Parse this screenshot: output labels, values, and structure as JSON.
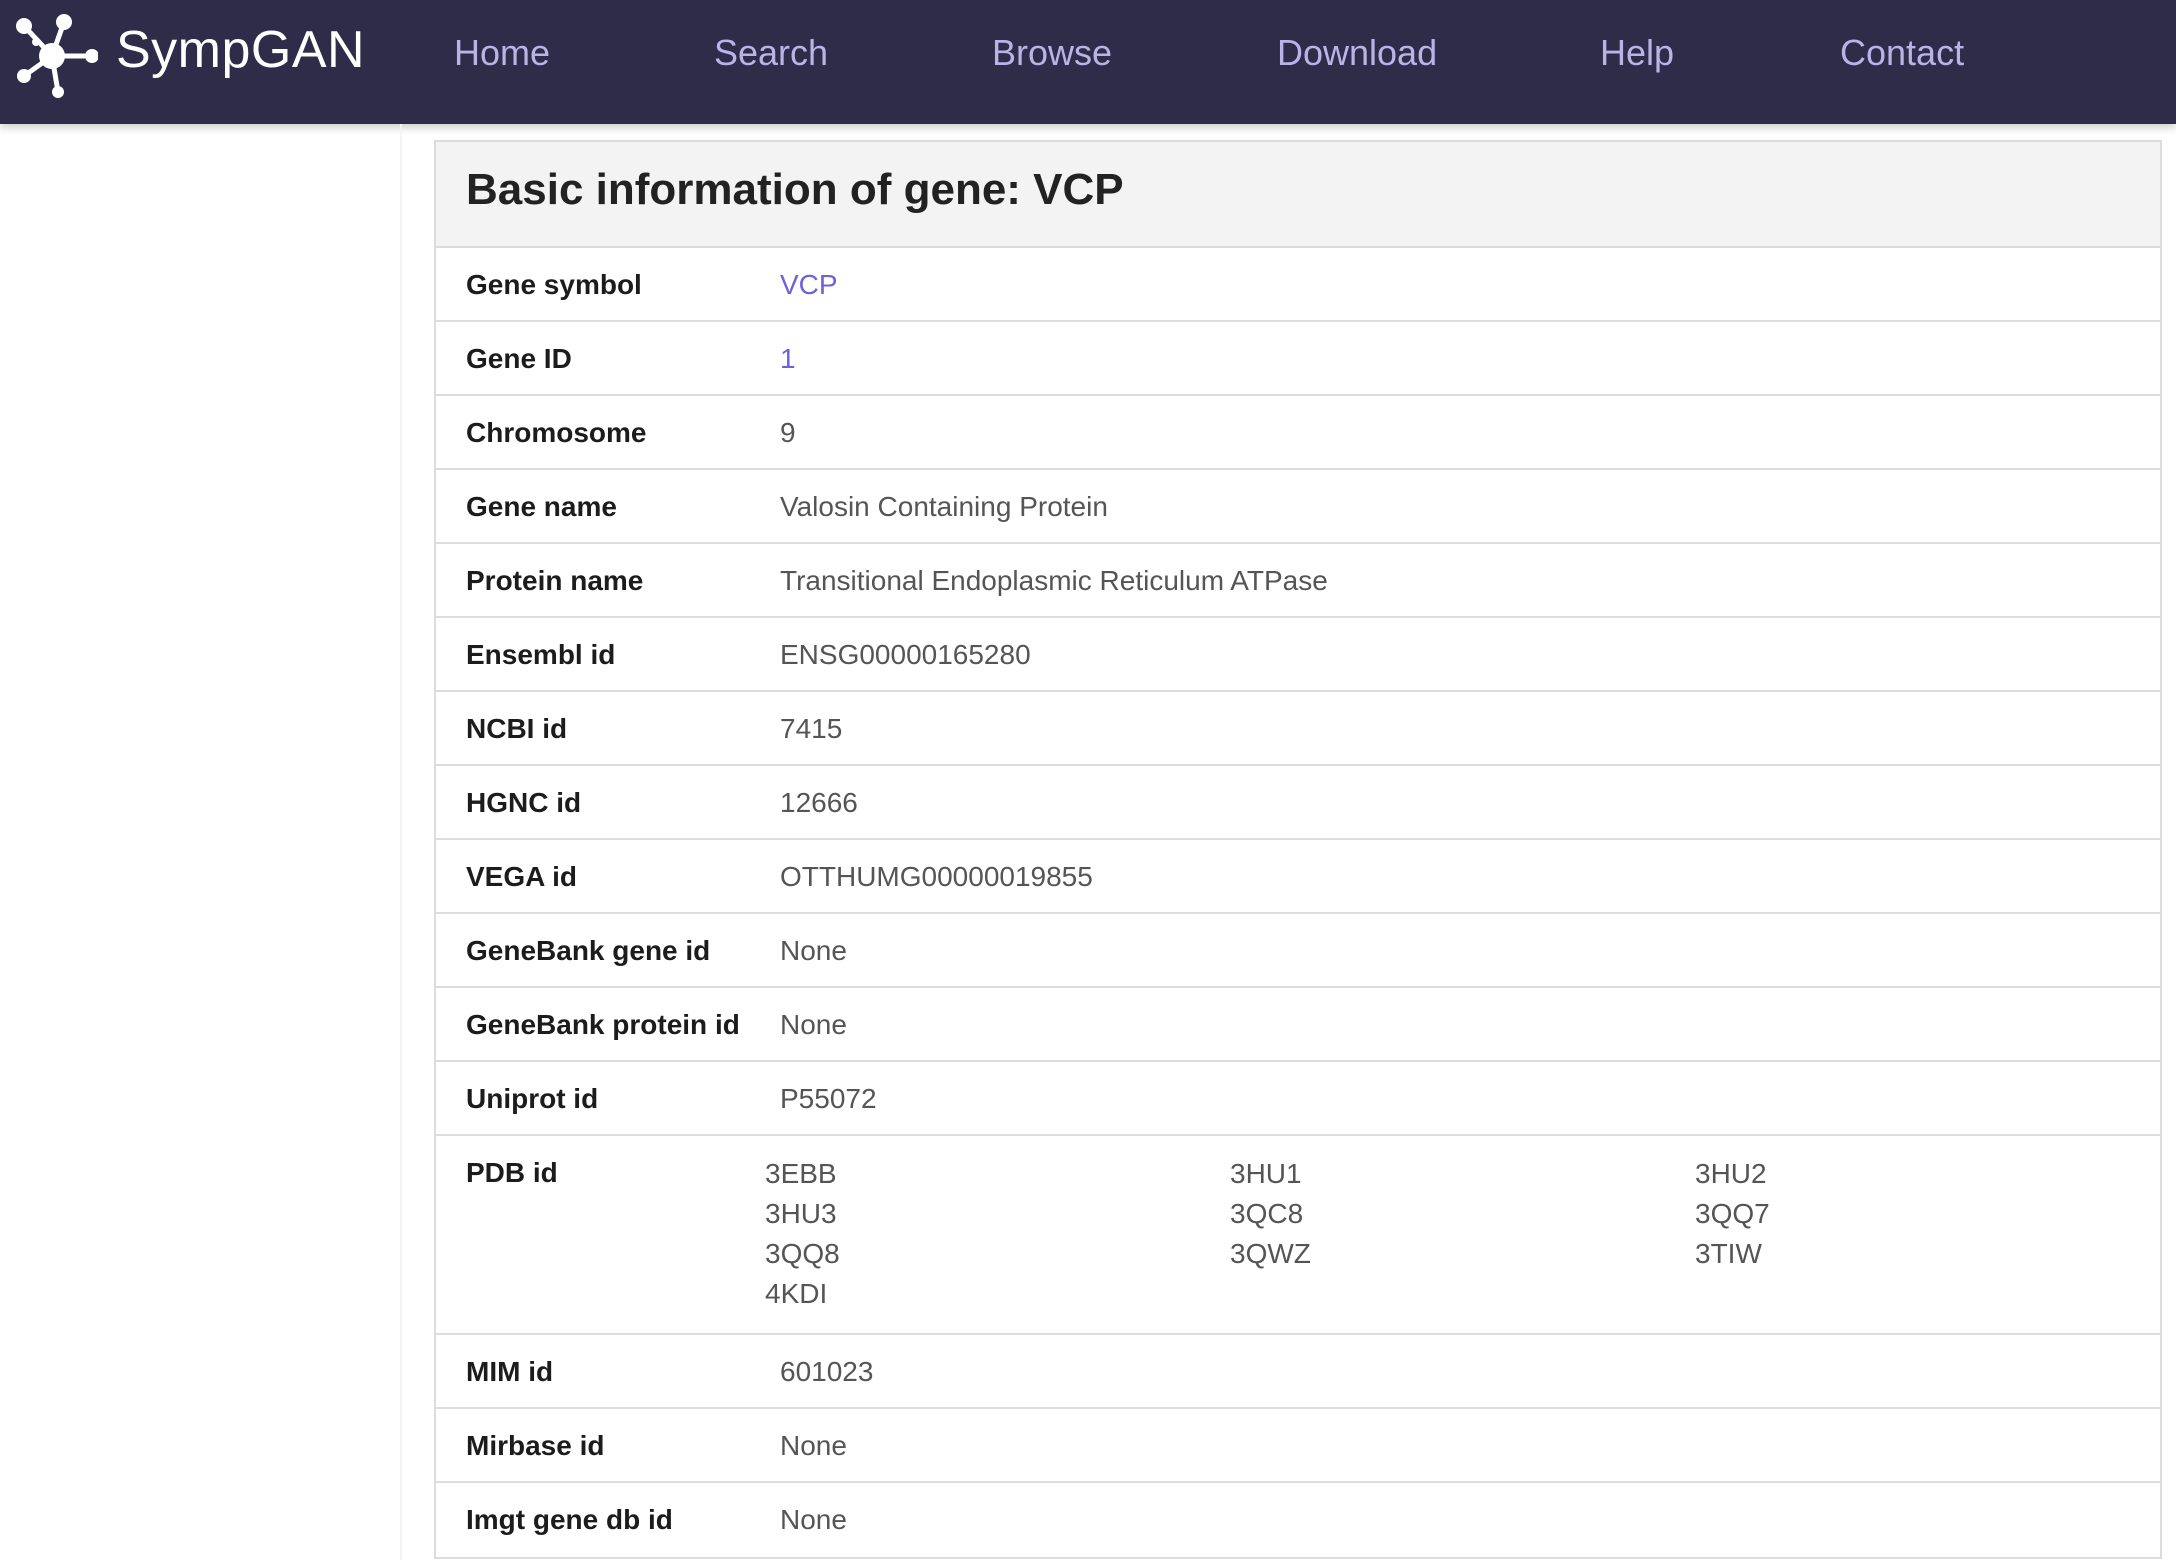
{
  "brand": {
    "name": "SympGAN",
    "logo_icon": "network-nodes-icon",
    "colors": {
      "navbar_bg": "#2e2c48",
      "nav_text": "#b9b4e6",
      "link": "#6c63d8"
    }
  },
  "nav": {
    "items": [
      {
        "label": "Home"
      },
      {
        "label": "Search"
      },
      {
        "label": "Browse"
      },
      {
        "label": "Download"
      },
      {
        "label": "Help"
      },
      {
        "label": "Contact"
      }
    ]
  },
  "panel": {
    "title": "Basic information of gene: VCP"
  },
  "gene": {
    "rows": [
      {
        "label": "Gene symbol",
        "value": "VCP"
      },
      {
        "label": "Gene ID",
        "value": "1"
      },
      {
        "label": "Chromosome",
        "value": "9"
      },
      {
        "label": "Gene name",
        "value": "Valosin Containing Protein"
      },
      {
        "label": "Protein name",
        "value": "Transitional Endoplasmic Reticulum ATPase"
      },
      {
        "label": "Ensembl id",
        "value": "ENSG00000165280"
      },
      {
        "label": "NCBI id",
        "value": "7415"
      },
      {
        "label": "HGNC id",
        "value": "12666"
      },
      {
        "label": "VEGA id",
        "value": "OTTHUMG00000019855"
      },
      {
        "label": "GeneBank gene id",
        "value": "None"
      },
      {
        "label": "GeneBank protein id",
        "value": "None"
      },
      {
        "label": "Uniprot id",
        "value": "P55072"
      }
    ],
    "pdb": {
      "label": "PDB id",
      "ids": [
        "3EBB",
        "3HU1",
        "3HU2",
        "3HU3",
        "3QC8",
        "3QQ7",
        "3QQ8",
        "3QWZ",
        "3TIW",
        "4KDI"
      ]
    },
    "tail_rows": [
      {
        "label": "MIM id",
        "value": "601023"
      },
      {
        "label": "Mirbase id",
        "value": "None"
      },
      {
        "label": "Imgt gene db id",
        "value": "None"
      }
    ]
  }
}
